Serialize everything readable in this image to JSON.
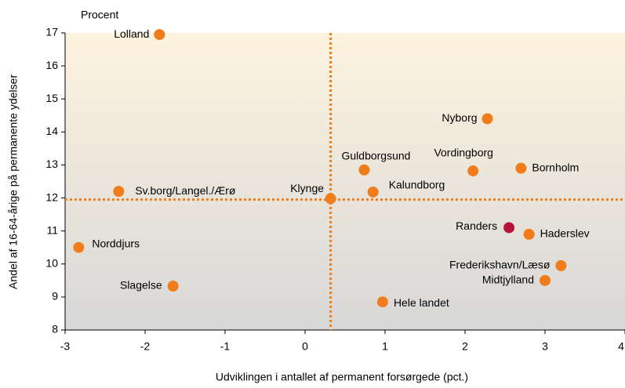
{
  "chart_data": {
    "type": "scatter",
    "unit_label": "Procent",
    "x_label": "Udviklingen i antallet af permanent forsørgede (pct.)",
    "y_label": "Andel af 16-64-årige på permanente ydelser",
    "labels": [
      "Lolland",
      "Nyborg",
      "Guldborgsund",
      "Vordingborg",
      "Bornholm",
      "Sv.borg/Langel./Ærø",
      "Klynge",
      "Kalundborg",
      "Randers",
      "Haderslev",
      "Norddjurs",
      "Frederikshavn/Læsø",
      "Midtjylland",
      "Slagelse",
      "Hele landet"
    ],
    "x": [
      -1.82,
      2.28,
      0.74,
      2.1,
      2.7,
      -2.33,
      0.32,
      0.85,
      2.55,
      2.8,
      -2.83,
      3.2,
      3.0,
      -1.65,
      0.97
    ],
    "y": [
      16.95,
      14.4,
      12.85,
      12.82,
      12.9,
      12.2,
      11.98,
      12.18,
      11.1,
      10.9,
      10.5,
      9.95,
      9.5,
      9.33,
      8.85
    ],
    "colors": [
      "#f07c1b",
      "#f07c1b",
      "#f07c1b",
      "#f07c1b",
      "#f07c1b",
      "#f07c1b",
      "#f07c1b",
      "#f07c1b",
      "#b5123c",
      "#f07c1b",
      "#f07c1b",
      "#f07c1b",
      "#f07c1b",
      "#f07c1b",
      "#f07c1b"
    ],
    "reference_x": 0.32,
    "reference_y": 11.95,
    "reference_color": "#f07c1b",
    "xlim": [
      -3,
      4
    ],
    "ylim": [
      8,
      17
    ],
    "xticks": [
      -3,
      -2,
      -1,
      0,
      1,
      2,
      3,
      4
    ],
    "yticks": [
      8,
      9,
      10,
      11,
      12,
      13,
      14,
      15,
      16,
      17
    ]
  }
}
